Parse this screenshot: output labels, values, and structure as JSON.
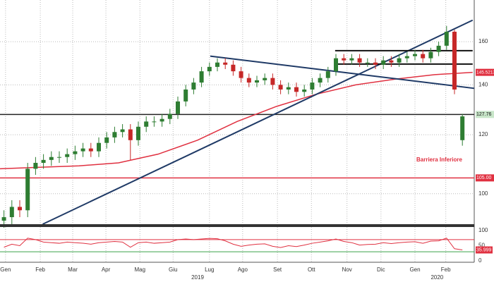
{
  "chart_data": {
    "type": "candlestick",
    "x": [
      0.5,
      1.5,
      2.5,
      3.5,
      4.5,
      5.5,
      6.5,
      7.5,
      8.5,
      9.5,
      10.5,
      11.5,
      12.5,
      13.5,
      14.5,
      15.5,
      16.5,
      17.5,
      18.5,
      19.5,
      20.5,
      21.5,
      22.5,
      23.5,
      24.5,
      25.5,
      26.5,
      27.5,
      28.5,
      29.5,
      30.5,
      31.5,
      32.5,
      33.5,
      34.5,
      35.5,
      36.5,
      37.5,
      38.5,
      39.5,
      40.5,
      41.5,
      42.5,
      43.5,
      44.5,
      45.5,
      46.5,
      47.5,
      48.5,
      49.5,
      50.5,
      51.5,
      52.5,
      53.5,
      54.5,
      55.5,
      56.5,
      57.5,
      58.5
    ],
    "open": [
      92,
      93,
      96,
      95,
      108,
      110,
      111,
      112,
      112,
      113,
      114,
      115,
      114,
      117,
      119,
      121,
      122,
      118,
      123,
      125,
      125,
      126,
      128,
      133,
      138,
      141,
      146,
      148,
      150,
      149,
      146,
      143,
      141,
      142,
      143,
      140,
      138,
      139,
      137,
      138,
      141,
      143,
      146,
      152,
      151,
      152,
      150,
      150,
      149,
      151,
      150,
      152,
      153,
      154,
      152,
      155,
      158,
      165,
      118
    ],
    "high": [
      95,
      98,
      98,
      110,
      112,
      113,
      114,
      114,
      115,
      116,
      117,
      117,
      119,
      121,
      123,
      124,
      124,
      125,
      127,
      127,
      128,
      130,
      135,
      140,
      143,
      148,
      150,
      152,
      152,
      151,
      148,
      145,
      144,
      145,
      145,
      142,
      141,
      141,
      140,
      143,
      145,
      148,
      154,
      154,
      154,
      154,
      152,
      152,
      153,
      153,
      154,
      155,
      156,
      156,
      157,
      160,
      168,
      166,
      128
    ],
    "low": [
      90,
      91,
      93,
      93,
      106,
      108,
      109,
      110,
      110,
      111,
      112,
      112,
      112,
      115,
      117,
      119,
      111,
      116,
      121,
      123,
      123,
      124,
      126,
      131,
      136,
      139,
      144,
      146,
      147,
      144,
      141,
      139,
      139,
      140,
      138,
      136,
      136,
      135,
      135,
      136,
      139,
      141,
      144,
      149,
      149,
      148,
      148,
      147,
      147,
      148,
      148,
      150,
      151,
      150,
      150,
      153,
      156,
      136,
      116
    ],
    "close": [
      93,
      96,
      95,
      108,
      110,
      111,
      112,
      112,
      113,
      114,
      115,
      114,
      117,
      119,
      121,
      122,
      118,
      123,
      125,
      125,
      126,
      128,
      133,
      138,
      141,
      146,
      148,
      150,
      149,
      146,
      143,
      141,
      142,
      143,
      140,
      138,
      139,
      137,
      138,
      141,
      143,
      146,
      152,
      151,
      152,
      150,
      150,
      149,
      151,
      150,
      152,
      153,
      154,
      152,
      155,
      158,
      165,
      138,
      127
    ],
    "up_color": "#2e7d32",
    "down_color": "#c62828",
    "xlim": [
      0,
      60
    ],
    "ylim": [
      91,
      182
    ],
    "log_y": true,
    "grid": true,
    "yticks": [
      100,
      120,
      140,
      160
    ],
    "xticks": [
      {
        "value": 0.7,
        "label": "Gen"
      },
      {
        "value": 5.1,
        "label": "Feb"
      },
      {
        "value": 9.2,
        "label": "Mar"
      },
      {
        "value": 13.4,
        "label": "Apr"
      },
      {
        "value": 17.7,
        "label": "Mag"
      },
      {
        "value": 21.9,
        "label": "Giu"
      },
      {
        "value": 26.5,
        "label": "Lug"
      },
      {
        "value": 30.7,
        "label": "Ago"
      },
      {
        "value": 35.1,
        "label": "Set"
      },
      {
        "value": 39.4,
        "label": "Ott"
      },
      {
        "value": 43.9,
        "label": "Nov"
      },
      {
        "value": 48.2,
        "label": "Dic"
      },
      {
        "value": 52.5,
        "label": "Gen"
      },
      {
        "value": 56.4,
        "label": "Feb"
      }
    ],
    "year_ticks": [
      {
        "value": 25,
        "label": "2019"
      },
      {
        "value": 55.3,
        "label": "2020"
      }
    ],
    "moving_average": {
      "color": "#e03040",
      "x": [
        0,
        5,
        10,
        15,
        20,
        25,
        30,
        35,
        40,
        45,
        50,
        55,
        59.8
      ],
      "values": [
        108,
        108.5,
        109,
        110,
        113,
        118,
        125,
        131,
        136,
        140,
        142.5,
        144.5,
        145.5213
      ]
    },
    "levels": [
      {
        "value": 127.76,
        "color": "#222222",
        "label_bg": "#c8e6c9"
      },
      {
        "value": 105,
        "label": "105.00",
        "color": "#e03040",
        "label_bg": "#e03040"
      }
    ],
    "trendlines": [
      {
        "color": "#1f3a66",
        "x": [
          5.4,
          59.8
        ],
        "values": [
          91,
          171
        ]
      },
      {
        "color": "#1f3a66",
        "x": [
          26.6,
          60
        ],
        "values": [
          153,
          138.5
        ]
      },
      {
        "color": "#111111",
        "x": [
          42.4,
          59.8
        ],
        "values": [
          155.6,
          155.6
        ]
      },
      {
        "color": "#111111",
        "x": [
          42.4,
          59.8
        ],
        "values": [
          149.3,
          149.3
        ]
      }
    ],
    "annotation": "Barriera Inferiore",
    "rsi": {
      "color": "#e03040",
      "values": [
        45,
        55,
        50,
        75,
        70,
        62,
        60,
        58,
        62,
        60,
        58,
        55,
        60,
        62,
        64,
        62,
        45,
        60,
        62,
        58,
        60,
        62,
        70,
        72,
        70,
        72,
        74,
        73,
        66,
        55,
        48,
        52,
        55,
        56,
        48,
        44,
        50,
        47,
        52,
        58,
        62,
        66,
        72,
        64,
        60,
        52,
        54,
        55,
        60,
        57,
        60,
        62,
        63,
        58,
        65,
        66,
        75,
        40,
        35.999
      ],
      "ylim": [
        0,
        100
      ],
      "yticks": [
        0,
        50,
        100
      ],
      "upper": 70,
      "lower": 30,
      "upper_color": "#e03040",
      "lower_color": "#3aa34a"
    }
  }
}
